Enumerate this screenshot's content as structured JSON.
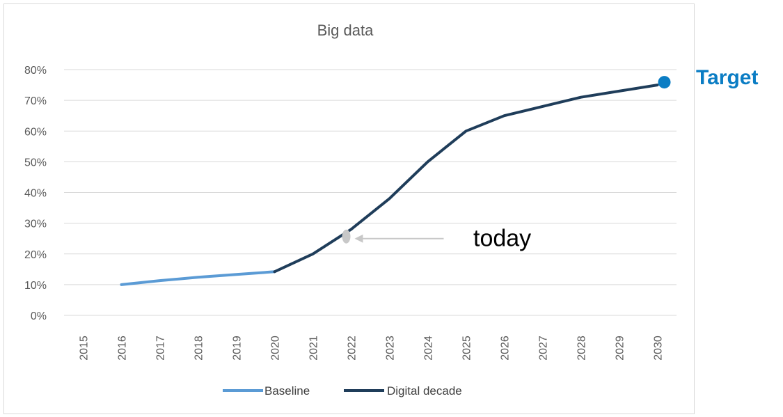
{
  "chart_data": {
    "type": "line",
    "title": "Big data",
    "xlabel": "",
    "ylabel": "",
    "categories": [
      "2015",
      "2016",
      "2017",
      "2018",
      "2019",
      "2020",
      "2021",
      "2022",
      "2023",
      "2024",
      "2025",
      "2026",
      "2027",
      "2028",
      "2029",
      "2030"
    ],
    "y_ticks": [
      "0%",
      "10%",
      "20%",
      "30%",
      "40%",
      "50%",
      "60%",
      "70%",
      "80%"
    ],
    "ylim": [
      0,
      80
    ],
    "grid": true,
    "legend_position": "bottom",
    "series": [
      {
        "name": "Baseline",
        "color": "#5b9bd5",
        "values": [
          null,
          10,
          11.3,
          12.4,
          13.3,
          14.2,
          null,
          null,
          null,
          null,
          null,
          null,
          null,
          null,
          null,
          null
        ]
      },
      {
        "name": "Digital decade",
        "color": "#1f3d5a",
        "values": [
          null,
          null,
          null,
          null,
          null,
          14.2,
          20,
          28,
          38,
          50,
          60,
          65,
          68,
          71,
          73,
          75
        ]
      }
    ],
    "annotations": {
      "today": {
        "label": "today",
        "year": "2022",
        "value": 25
      },
      "target": {
        "label": "Target",
        "year": "2030",
        "value": 75,
        "color": "#0b7dc4"
      }
    }
  }
}
